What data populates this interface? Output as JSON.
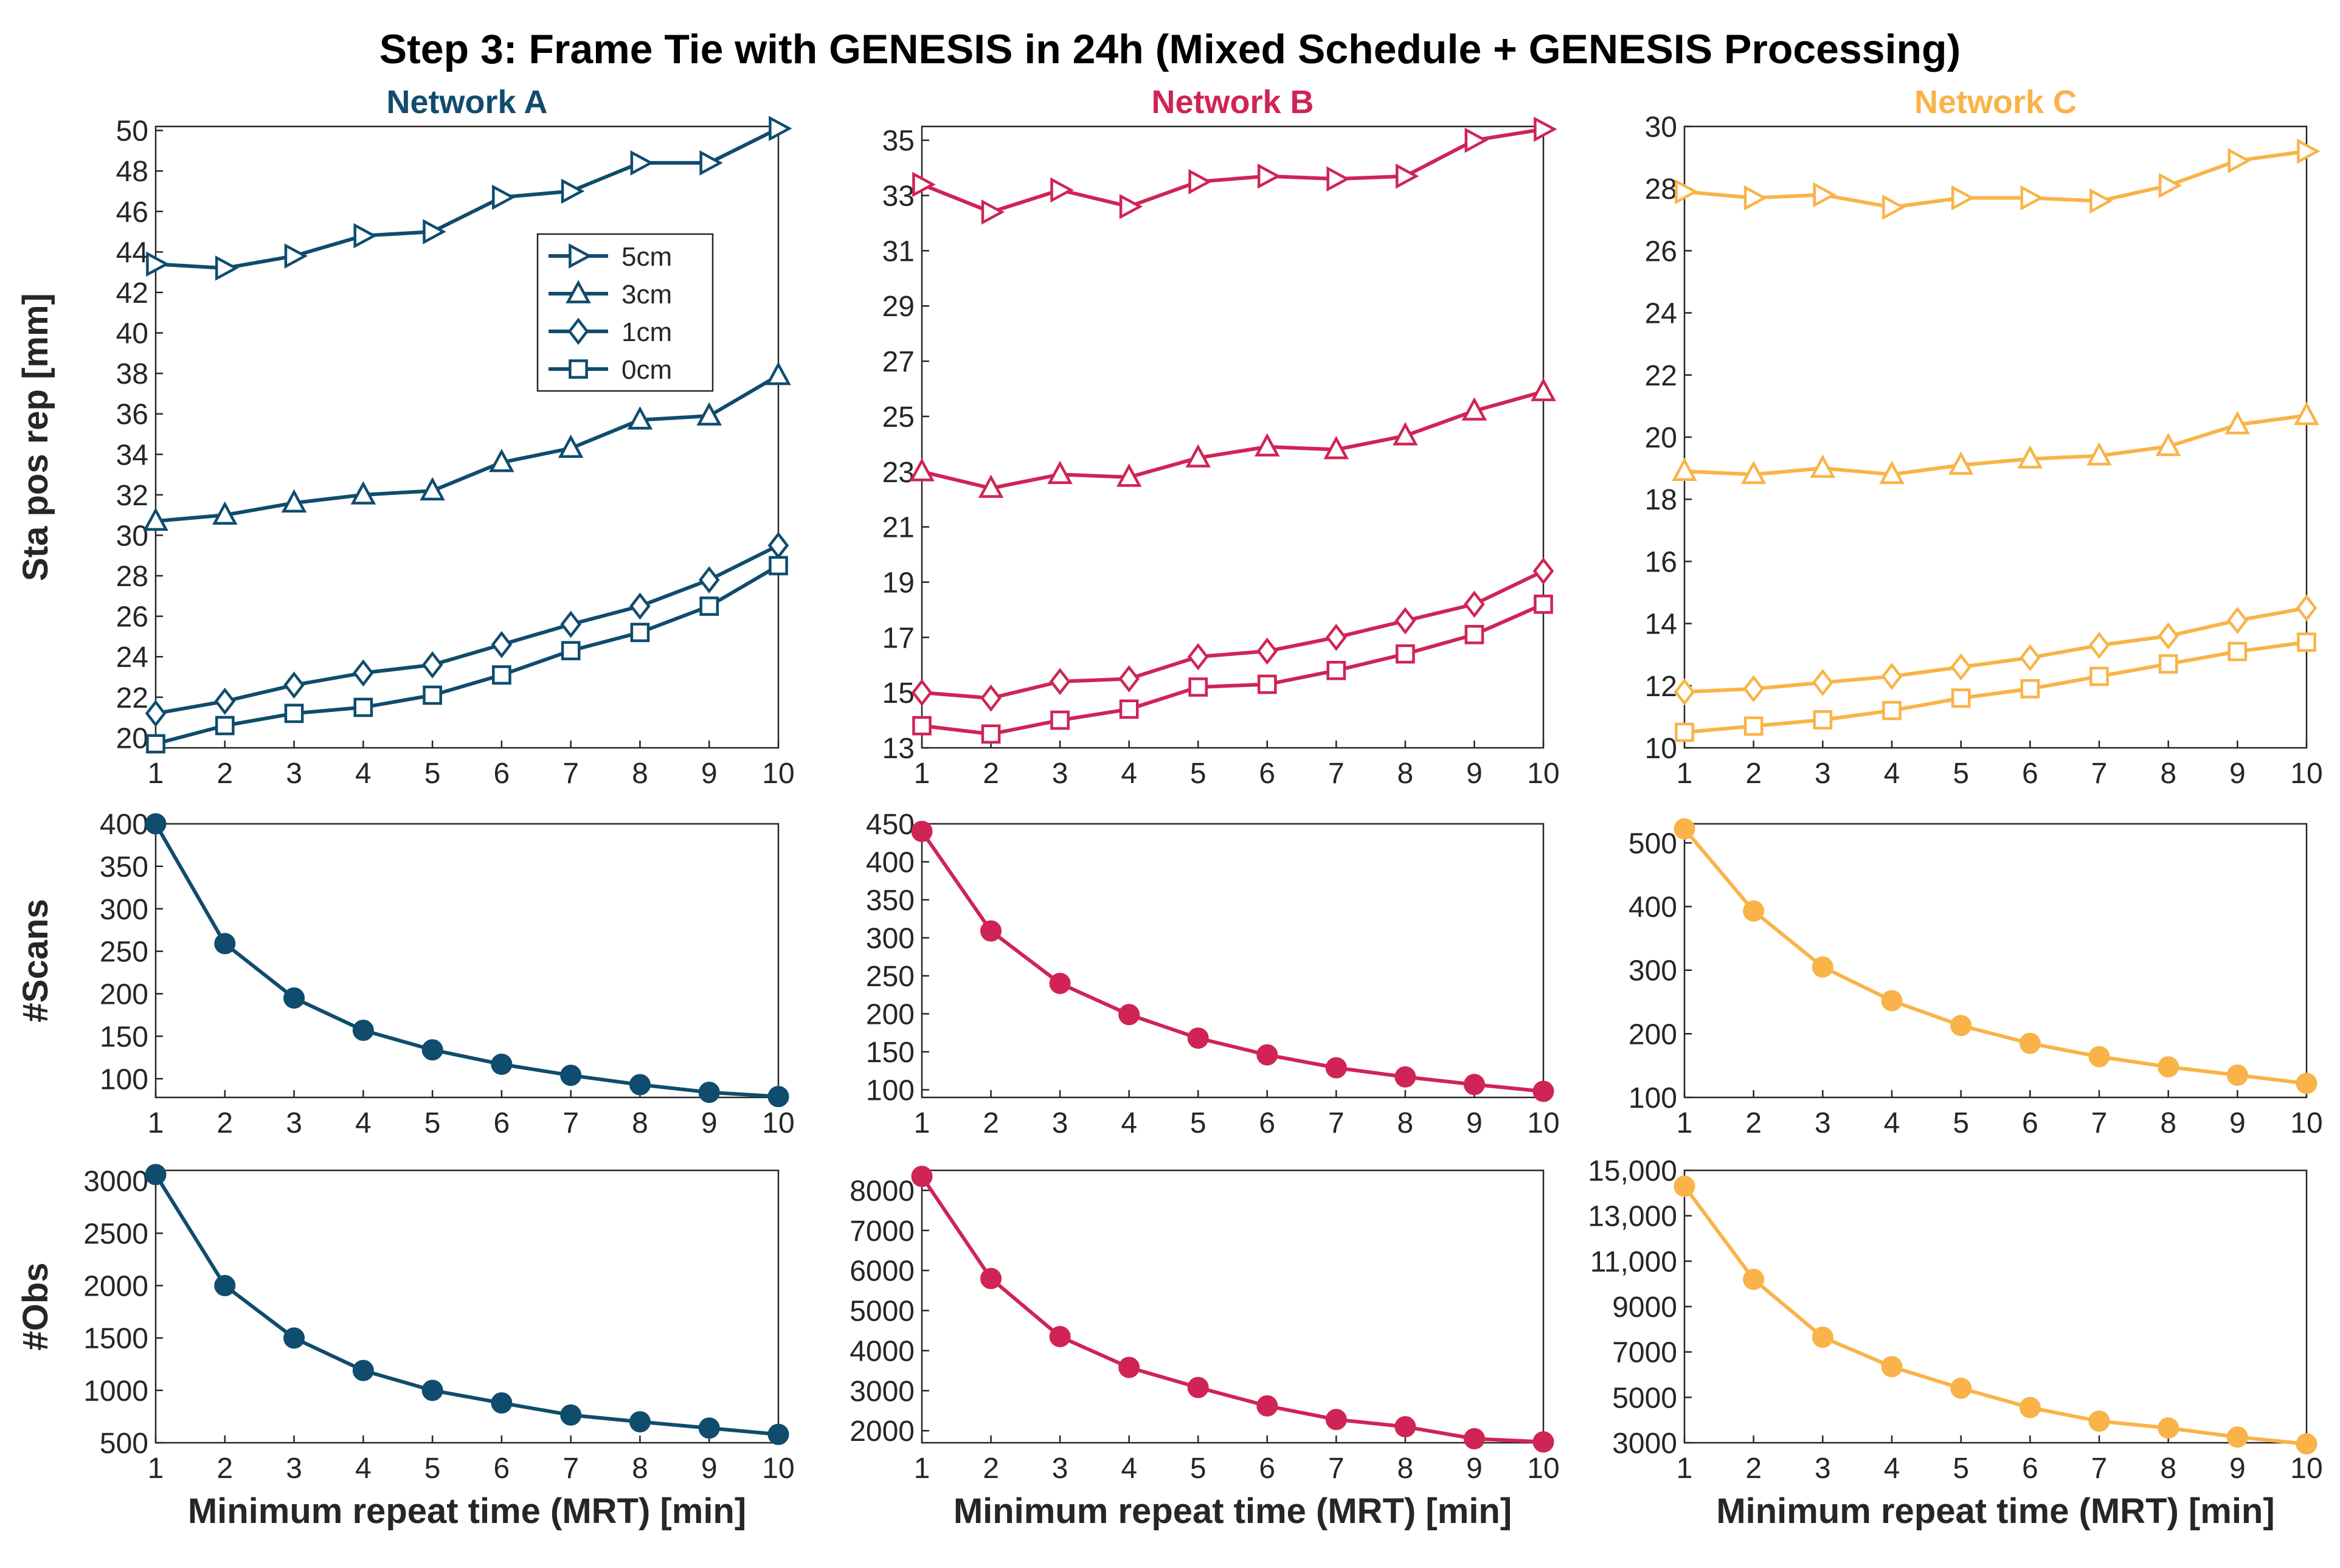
{
  "title": "Step 3: Frame Tie with GENESIS in 24h (Mixed Schedule + GENESIS Processing)",
  "columns": [
    {
      "name": "Network A",
      "color": "#0f4c6e"
    },
    {
      "name": "Network B",
      "color": "#cf2455"
    },
    {
      "name": "Network C",
      "color": "#f9b348"
    }
  ],
  "ylabels": [
    "Sta pos rep [mm]",
    "#Scans",
    "#Obs"
  ],
  "xlabel": "Minimum repeat time (MRT) [min]",
  "legend": {
    "location": "inside Network A top panel",
    "entries": [
      {
        "label": "5cm",
        "marker": "triangle-right"
      },
      {
        "label": "3cm",
        "marker": "triangle-up"
      },
      {
        "label": "1cm",
        "marker": "diamond"
      },
      {
        "label": "0cm",
        "marker": "square"
      }
    ]
  },
  "chart_data": [
    {
      "type": "line",
      "network": "Network A",
      "row": "rep",
      "title": "Network A",
      "xlabel": "",
      "ylabel": "Sta pos rep [mm]",
      "x": [
        1,
        2,
        3,
        4,
        5,
        6,
        7,
        8,
        9,
        10
      ],
      "xlim": [
        1,
        10
      ],
      "ylim": [
        19.5,
        50.2
      ],
      "yticks": [
        20,
        22,
        24,
        26,
        28,
        30,
        32,
        34,
        36,
        38,
        40,
        42,
        44,
        46,
        48,
        50
      ],
      "ytick_labels": [
        "20",
        "22",
        "24",
        "26",
        "28",
        "30",
        "32",
        "34",
        "36",
        "38",
        "40",
        "42",
        "44",
        "46",
        "48",
        "50"
      ],
      "series": [
        {
          "name": "5cm",
          "marker": "triangle-right",
          "values": [
            43.4,
            43.2,
            43.8,
            44.8,
            45.0,
            46.7,
            47.0,
            48.4,
            48.4,
            50.1
          ]
        },
        {
          "name": "3cm",
          "marker": "triangle-up",
          "values": [
            30.7,
            31.0,
            31.6,
            32.0,
            32.2,
            33.6,
            34.3,
            35.7,
            35.9,
            37.9
          ]
        },
        {
          "name": "1cm",
          "marker": "diamond",
          "values": [
            21.2,
            21.8,
            22.6,
            23.2,
            23.6,
            24.6,
            25.6,
            26.5,
            27.8,
            29.5
          ]
        },
        {
          "name": "0cm",
          "marker": "square",
          "values": [
            19.7,
            20.6,
            21.2,
            21.5,
            22.1,
            23.1,
            24.3,
            25.2,
            26.5,
            28.5
          ]
        }
      ]
    },
    {
      "type": "line",
      "network": "Network B",
      "row": "rep",
      "title": "Network B",
      "xlabel": "",
      "ylabel": "",
      "x": [
        1,
        2,
        3,
        4,
        5,
        6,
        7,
        8,
        9,
        10
      ],
      "xlim": [
        1,
        10
      ],
      "ylim": [
        13,
        35.5
      ],
      "yticks": [
        13,
        15,
        17,
        19,
        21,
        23,
        25,
        27,
        29,
        31,
        33,
        35
      ],
      "ytick_labels": [
        "13",
        "15",
        "17",
        "19",
        "21",
        "23",
        "25",
        "27",
        "29",
        "31",
        "33",
        "35"
      ],
      "series": [
        {
          "name": "5cm",
          "marker": "triangle-right",
          "values": [
            33.4,
            32.4,
            33.2,
            32.6,
            33.5,
            33.7,
            33.6,
            33.7,
            35.0,
            35.4
          ]
        },
        {
          "name": "3cm",
          "marker": "triangle-up",
          "values": [
            23.0,
            22.4,
            22.9,
            22.8,
            23.5,
            23.9,
            23.8,
            24.3,
            25.2,
            25.9
          ]
        },
        {
          "name": "1cm",
          "marker": "diamond",
          "values": [
            15.0,
            14.8,
            15.4,
            15.5,
            16.3,
            16.5,
            17.0,
            17.6,
            18.2,
            19.4
          ]
        },
        {
          "name": "0cm",
          "marker": "square",
          "values": [
            13.8,
            13.5,
            14.0,
            14.4,
            15.2,
            15.3,
            15.8,
            16.4,
            17.1,
            18.2
          ]
        }
      ]
    },
    {
      "type": "line",
      "network": "Network C",
      "row": "rep",
      "title": "Network C",
      "xlabel": "",
      "ylabel": "",
      "x": [
        1,
        2,
        3,
        4,
        5,
        6,
        7,
        8,
        9,
        10
      ],
      "xlim": [
        1,
        10
      ],
      "ylim": [
        10,
        30
      ],
      "yticks": [
        10,
        12,
        14,
        16,
        18,
        20,
        22,
        24,
        26,
        28,
        30
      ],
      "ytick_labels": [
        "10",
        "12",
        "14",
        "16",
        "18",
        "20",
        "22",
        "24",
        "26",
        "28",
        "30"
      ],
      "series": [
        {
          "name": "5cm",
          "marker": "triangle-right",
          "values": [
            27.9,
            27.7,
            27.8,
            27.4,
            27.7,
            27.7,
            27.6,
            28.1,
            28.9,
            29.2
          ]
        },
        {
          "name": "3cm",
          "marker": "triangle-up",
          "values": [
            18.9,
            18.8,
            19.0,
            18.8,
            19.1,
            19.3,
            19.4,
            19.7,
            20.4,
            20.7
          ]
        },
        {
          "name": "1cm",
          "marker": "diamond",
          "values": [
            11.8,
            11.9,
            12.1,
            12.3,
            12.6,
            12.9,
            13.3,
            13.6,
            14.1,
            14.5
          ]
        },
        {
          "name": "0cm",
          "marker": "square",
          "values": [
            10.5,
            10.7,
            10.9,
            11.2,
            11.6,
            11.9,
            12.3,
            12.7,
            13.1,
            13.4
          ]
        }
      ]
    },
    {
      "type": "line",
      "network": "Network A",
      "row": "scans",
      "title": "",
      "xlabel": "",
      "ylabel": "#Scans",
      "x": [
        1,
        2,
        3,
        4,
        5,
        6,
        7,
        8,
        9,
        10
      ],
      "xlim": [
        1,
        10
      ],
      "ylim": [
        78,
        400
      ],
      "yticks": [
        100,
        150,
        200,
        250,
        300,
        350,
        400
      ],
      "ytick_labels": [
        "100",
        "150",
        "200",
        "250",
        "300",
        "350",
        "400"
      ],
      "series": [
        {
          "name": "#Scans",
          "marker": "circle",
          "values": [
            400,
            259,
            195,
            157,
            134,
            117,
            104,
            93,
            84,
            79
          ]
        }
      ]
    },
    {
      "type": "line",
      "network": "Network B",
      "row": "scans",
      "title": "",
      "xlabel": "",
      "ylabel": "",
      "x": [
        1,
        2,
        3,
        4,
        5,
        6,
        7,
        8,
        9,
        10
      ],
      "xlim": [
        1,
        10
      ],
      "ylim": [
        90,
        450
      ],
      "yticks": [
        100,
        150,
        200,
        250,
        300,
        350,
        400,
        450
      ],
      "ytick_labels": [
        "100",
        "150",
        "200",
        "250",
        "300",
        "350",
        "400",
        "450"
      ],
      "series": [
        {
          "name": "#Scans",
          "marker": "circle",
          "values": [
            440,
            309,
            240,
            199,
            168,
            146,
            129,
            117,
            107,
            98
          ]
        }
      ]
    },
    {
      "type": "line",
      "network": "Network C",
      "row": "scans",
      "title": "",
      "xlabel": "",
      "ylabel": "",
      "x": [
        1,
        2,
        3,
        4,
        5,
        6,
        7,
        8,
        9,
        10
      ],
      "xlim": [
        1,
        10
      ],
      "ylim": [
        100,
        530
      ],
      "yticks": [
        100,
        200,
        300,
        400,
        500
      ],
      "ytick_labels": [
        "100",
        "200",
        "300",
        "400",
        "500"
      ],
      "series": [
        {
          "name": "#Scans",
          "marker": "circle",
          "values": [
            522,
            393,
            305,
            252,
            213,
            185,
            164,
            148,
            135,
            122
          ]
        }
      ]
    },
    {
      "type": "line",
      "network": "Network A",
      "row": "obs",
      "title": "",
      "xlabel": "Minimum repeat time (MRT) [min]",
      "ylabel": "#Obs",
      "x": [
        1,
        2,
        3,
        4,
        5,
        6,
        7,
        8,
        9,
        10
      ],
      "xlim": [
        1,
        10
      ],
      "ylim": [
        500,
        3100
      ],
      "yticks": [
        500,
        1000,
        1500,
        2000,
        2500,
        3000
      ],
      "ytick_labels": [
        "500",
        "1000",
        "1500",
        "2000",
        "2500",
        "3000"
      ],
      "series": [
        {
          "name": "#Obs",
          "marker": "circle",
          "values": [
            3060,
            2000,
            1500,
            1190,
            1000,
            880,
            765,
            700,
            640,
            580
          ]
        }
      ]
    },
    {
      "type": "line",
      "network": "Network B",
      "row": "obs",
      "title": "",
      "xlabel": "Minimum repeat time (MRT) [min]",
      "ylabel": "",
      "x": [
        1,
        2,
        3,
        4,
        5,
        6,
        7,
        8,
        9,
        10
      ],
      "xlim": [
        1,
        10
      ],
      "ylim": [
        1700,
        8500
      ],
      "yticks": [
        2000,
        3000,
        4000,
        5000,
        6000,
        7000,
        8000
      ],
      "ytick_labels": [
        "2000",
        "3000",
        "4000",
        "5000",
        "6000",
        "7000",
        "8000"
      ],
      "series": [
        {
          "name": "#Obs",
          "marker": "circle",
          "values": [
            8350,
            5800,
            4350,
            3580,
            3080,
            2620,
            2280,
            2100,
            1800,
            1720
          ]
        }
      ]
    },
    {
      "type": "line",
      "network": "Network C",
      "row": "obs",
      "title": "",
      "xlabel": "Minimum repeat time (MRT) [min]",
      "ylabel": "",
      "x": [
        1,
        2,
        3,
        4,
        5,
        6,
        7,
        8,
        9,
        10
      ],
      "xlim": [
        1,
        10
      ],
      "ylim": [
        3000,
        15000
      ],
      "yticks": [
        3000,
        5000,
        7000,
        9000,
        11000,
        13000,
        15000
      ],
      "ytick_labels": [
        "3000",
        "5000",
        "7000",
        "9000",
        "11,000",
        "13,000",
        "15,000"
      ],
      "series": [
        {
          "name": "#Obs",
          "marker": "circle",
          "values": [
            14300,
            10200,
            7650,
            6350,
            5400,
            4550,
            3950,
            3650,
            3250,
            2950
          ]
        }
      ]
    }
  ]
}
